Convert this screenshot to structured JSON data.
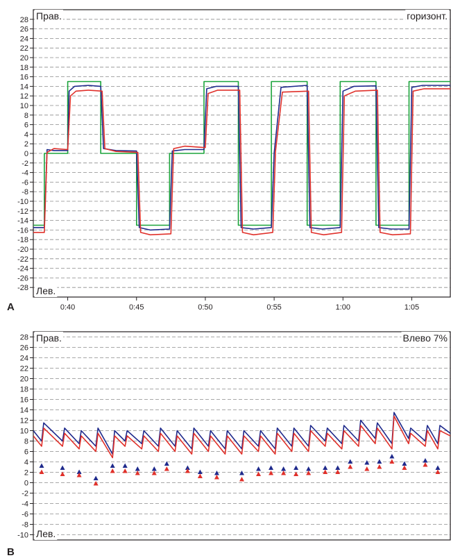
{
  "colors": {
    "stimulus": "#1aa33a",
    "series_blue": "#1f2a8c",
    "series_red": "#e0302a",
    "grid": "#8a8a8a",
    "axis": "#231f20"
  },
  "chart_data": [
    {
      "panel": "A",
      "type": "line",
      "corner_top_left": "Прав.",
      "corner_top_right": "горизонт.",
      "corner_bottom_left": "Лев.",
      "ylim": [
        -30,
        30
      ],
      "yticks": [
        -28,
        -26,
        -24,
        -22,
        -20,
        -18,
        -16,
        -14,
        -12,
        -10,
        -8,
        -6,
        -4,
        -2,
        0,
        2,
        4,
        6,
        8,
        10,
        12,
        14,
        16,
        18,
        20,
        22,
        24,
        26,
        28
      ],
      "xlim": [
        37.5,
        67.8
      ],
      "xticks": [
        {
          "v": 40,
          "label": "0:40"
        },
        {
          "v": 45,
          "label": "0:45"
        },
        {
          "v": 50,
          "label": "0:50"
        },
        {
          "v": 55,
          "label": "0:55"
        },
        {
          "v": 60,
          "label": "1:00"
        },
        {
          "v": 65,
          "label": "1:05"
        }
      ],
      "grid": "horizontal dashed",
      "series": [
        {
          "color": "stimulus",
          "x": [
            37.5,
            38.3,
            38.3,
            40.0,
            40.0,
            42.4,
            42.4,
            45.0,
            45.0,
            47.4,
            47.4,
            49.9,
            49.9,
            52.4,
            52.4,
            54.8,
            54.8,
            57.4,
            57.4,
            59.8,
            59.8,
            62.4,
            62.4,
            64.8,
            64.8,
            67.8
          ],
          "y": [
            -15,
            -15,
            0,
            0,
            15,
            15,
            0,
            0,
            -15,
            -15,
            0,
            0,
            15,
            15,
            -15,
            -15,
            15,
            15,
            -15,
            -15,
            15,
            15,
            -15,
            -15,
            15,
            15
          ]
        },
        {
          "color": "series_blue",
          "x": [
            37.5,
            38.3,
            38.5,
            39.0,
            40.0,
            40.1,
            40.5,
            41.5,
            42.4,
            42.6,
            43.5,
            45.0,
            45.2,
            46.0,
            47.4,
            47.6,
            48.5,
            49.9,
            50.1,
            50.8,
            52.4,
            52.6,
            53.5,
            54.8,
            55.0,
            55.5,
            57.4,
            57.6,
            58.5,
            59.8,
            60.0,
            60.8,
            62.4,
            62.6,
            63.5,
            64.8,
            65.0,
            65.8,
            67.8
          ],
          "y": [
            -15.5,
            -15.5,
            0.8,
            0.6,
            0.6,
            13,
            14,
            14.2,
            14,
            1,
            0.6,
            0.5,
            -15.5,
            -16,
            -15.8,
            0.5,
            0.8,
            0.8,
            13.5,
            14,
            14,
            -15.5,
            -15.8,
            -15.5,
            0,
            13.8,
            14.2,
            -15.5,
            -15.8,
            -15.5,
            13,
            14,
            14.1,
            -15.5,
            -15.8,
            -15.8,
            13.8,
            14.2,
            14.2
          ]
        },
        {
          "color": "series_red",
          "x": [
            37.5,
            38.3,
            38.5,
            39.0,
            40.0,
            40.2,
            40.6,
            41.5,
            42.5,
            42.7,
            43.5,
            45.1,
            45.3,
            46.0,
            47.5,
            47.7,
            48.5,
            50.0,
            50.2,
            50.9,
            52.5,
            52.7,
            53.5,
            54.9,
            55.1,
            55.6,
            57.5,
            57.7,
            58.6,
            59.9,
            60.1,
            60.9,
            62.5,
            62.7,
            63.6,
            64.9,
            65.1,
            65.9,
            67.8
          ],
          "y": [
            -16.5,
            -16.5,
            0.2,
            1,
            0.8,
            12,
            13,
            13.2,
            13,
            1,
            0.4,
            0.2,
            -16.5,
            -17,
            -16.8,
            1,
            1.5,
            1.2,
            12.5,
            13.2,
            13.2,
            -16.5,
            -17,
            -16.5,
            0.5,
            12.8,
            13,
            -16.5,
            -17,
            -16.5,
            12,
            13,
            13.2,
            -16.5,
            -17,
            -16.8,
            13,
            13.5,
            13.5
          ]
        }
      ]
    },
    {
      "panel": "B",
      "type": "line",
      "corner_top_left": "Прав.",
      "corner_top_right": "Влево 7%",
      "corner_bottom_left": "Лев.",
      "ylim": [
        -11,
        29
      ],
      "yticks": [
        -10,
        -8,
        -6,
        -4,
        -2,
        0,
        2,
        4,
        6,
        8,
        10,
        12,
        14,
        16,
        18,
        20,
        22,
        24,
        26,
        28
      ],
      "xlim": [
        0,
        100
      ],
      "grid": "horizontal dashed",
      "series": [
        {
          "color": "series_blue",
          "x": [
            0,
            2,
            2.5,
            7,
            7.5,
            11,
            11.5,
            15,
            15.5,
            19,
            19.5,
            22,
            22.5,
            26,
            26.5,
            30,
            30.5,
            34,
            34.5,
            38,
            38.5,
            42,
            42.5,
            46,
            46.5,
            50,
            50.5,
            54,
            54.5,
            58,
            58.5,
            62,
            62.5,
            66,
            66.5,
            70,
            70.5,
            74,
            74.5,
            78,
            78.5,
            82,
            82.5,
            86,
            86.5,
            90,
            90.5,
            94,
            94.5,
            97,
            97.5,
            100
          ],
          "y": [
            10,
            8,
            11.5,
            8,
            10.5,
            7.5,
            10,
            7,
            10.5,
            5.5,
            10,
            8,
            10,
            7.5,
            10,
            7,
            10.5,
            7,
            10,
            6.5,
            10.5,
            7,
            10,
            6.5,
            10,
            6.5,
            10,
            7,
            10,
            6.5,
            10.5,
            7,
            10.5,
            7,
            11,
            8,
            10.5,
            7.5,
            11,
            8,
            12,
            8.5,
            11.5,
            7.5,
            13.5,
            8.5,
            10.5,
            8,
            11,
            7.5,
            11,
            9.5
          ]
        },
        {
          "color": "series_red",
          "x": [
            0,
            2,
            2.5,
            7,
            7.5,
            11,
            11.5,
            15,
            15.5,
            19,
            19.5,
            22,
            22.5,
            26,
            26.5,
            30,
            30.5,
            34,
            34.5,
            38,
            38.5,
            42,
            42.5,
            46,
            46.5,
            50,
            50.5,
            54,
            54.5,
            58,
            58.5,
            62,
            62.5,
            66,
            66.5,
            70,
            70.5,
            74,
            74.5,
            78,
            78.5,
            82,
            82.5,
            86,
            86.5,
            90,
            90.5,
            94,
            94.5,
            97,
            97.5,
            100
          ],
          "y": [
            9,
            7,
            10.5,
            7,
            9.5,
            6.5,
            9,
            6,
            9.5,
            4.8,
            9,
            7,
            9,
            6.5,
            9,
            6,
            9.5,
            6,
            9,
            5.5,
            9.5,
            6,
            9,
            5.5,
            9,
            5.5,
            9,
            6,
            9,
            5.5,
            9.5,
            6,
            9.5,
            6,
            10,
            7,
            9.5,
            6.5,
            10,
            7,
            11,
            7.5,
            10.5,
            6.5,
            12.8,
            7.5,
            9.5,
            7,
            10,
            6.5,
            10,
            9
          ]
        }
      ],
      "markers": [
        {
          "series": "series_blue",
          "x": [
            2,
            7,
            11,
            15,
            19,
            22,
            25,
            29,
            32,
            37,
            40,
            44,
            50,
            54,
            57,
            60,
            63,
            66,
            70,
            73,
            76,
            80,
            83,
            86,
            89,
            94,
            97
          ],
          "y": [
            3.2,
            2.8,
            2,
            0.8,
            3.2,
            3.2,
            2.6,
            2.6,
            3.6,
            2.8,
            2,
            1.8,
            1.8,
            2.6,
            2.8,
            2.6,
            2.8,
            2.6,
            2.8,
            2.8,
            4,
            3.8,
            4,
            5,
            3.6,
            4.2,
            2.8
          ]
        },
        {
          "series": "series_red",
          "x": [
            2,
            7,
            11,
            15,
            19,
            22,
            25,
            29,
            32,
            37,
            40,
            44,
            50,
            54,
            57,
            60,
            63,
            66,
            70,
            73,
            76,
            80,
            83,
            86,
            89,
            94,
            97
          ],
          "y": [
            2,
            1.6,
            1.4,
            -0.2,
            2.2,
            2.2,
            1.8,
            1.8,
            2.6,
            2.2,
            1.2,
            1,
            0.6,
            1.6,
            1.8,
            1.8,
            1.6,
            1.8,
            2,
            2,
            3,
            2.6,
            3,
            4,
            2.8,
            3.4,
            2
          ]
        }
      ]
    }
  ],
  "panel_labels": [
    "A",
    "B"
  ]
}
